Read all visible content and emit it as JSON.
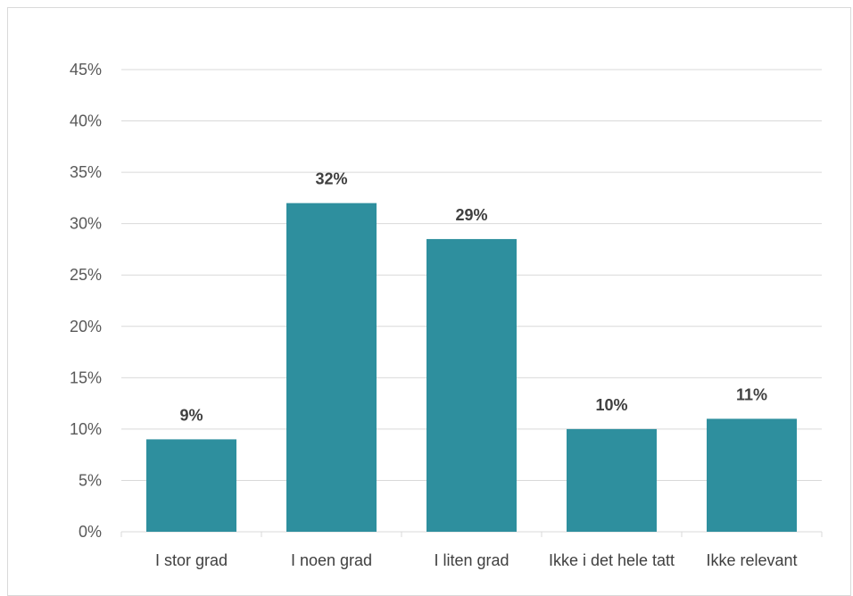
{
  "chart_data": {
    "type": "bar",
    "title": "",
    "xlabel": "",
    "ylabel": "",
    "categories": [
      "I stor grad",
      "I noen grad",
      "I liten grad",
      "Ikke i det hele tatt",
      "Ikke relevant"
    ],
    "values": [
      9,
      32,
      28.5,
      10,
      11
    ],
    "data_labels": [
      "9%",
      "32%",
      "29%",
      "10%",
      "11%"
    ],
    "ylim": [
      0,
      45
    ],
    "yticks": [
      0,
      5,
      10,
      15,
      20,
      25,
      30,
      35,
      40,
      45
    ],
    "ytick_labels": [
      "0%",
      "5%",
      "10%",
      "15%",
      "20%",
      "25%",
      "30%",
      "35%",
      "40%",
      "45%"
    ],
    "bar_color": "#2e8f9e",
    "gridline_color": "#d9d9d9",
    "grid": true,
    "legend": "none"
  }
}
